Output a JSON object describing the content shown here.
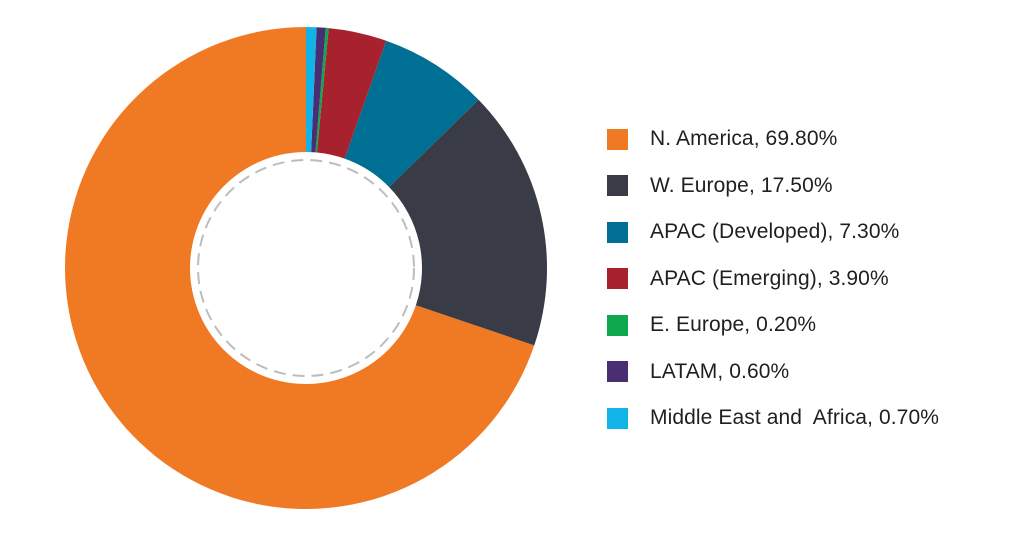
{
  "chart_data": {
    "type": "pie",
    "variant": "donut",
    "title": "",
    "categories": [
      "N. America",
      "W. Europe",
      "APAC (Developed)",
      "APAC (Emerging)",
      "E. Europe",
      "LATAM",
      "Middle East and  Africa"
    ],
    "values": [
      69.8,
      17.5,
      7.3,
      3.9,
      0.2,
      0.6,
      0.7
    ],
    "colors": [
      "#EF7A23",
      "#393C47",
      "#006F94",
      "#A8222E",
      "#0FA84F",
      "#4A2E73",
      "#12B4E8"
    ],
    "legend_labels": [
      "N. America, 69.80%",
      "W. Europe, 17.50%",
      "APAC (Developed), 7.30%",
      "APAC (Emerging), 3.90%",
      "E. Europe, 0.20%",
      "LATAM, 0.60%",
      "Middle East and  Africa, 0.70%"
    ],
    "legend_position": "right",
    "center_ring_style": "dashed gray circle"
  }
}
